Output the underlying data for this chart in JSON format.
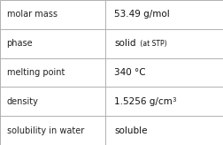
{
  "rows": [
    {
      "label": "molar mass",
      "value": "53.49 g/mol",
      "type": "plain"
    },
    {
      "label": "phase",
      "value": "solid",
      "type": "suffix",
      "suffix": " (at STP)",
      "suffix_fontsize": 5.5
    },
    {
      "label": "melting point",
      "value": "340 °C",
      "type": "plain"
    },
    {
      "label": "density",
      "value": "1.5256 g/cm",
      "type": "super",
      "super": "3"
    },
    {
      "label": "solubility in water",
      "value": "soluble",
      "type": "plain"
    }
  ],
  "col_split": 0.47,
  "bg_color": "#ffffff",
  "border_color": "#b0b0b0",
  "label_fontsize": 7.0,
  "value_fontsize": 7.5,
  "label_color": "#222222",
  "value_color": "#111111",
  "super_fontsize": 5.0
}
